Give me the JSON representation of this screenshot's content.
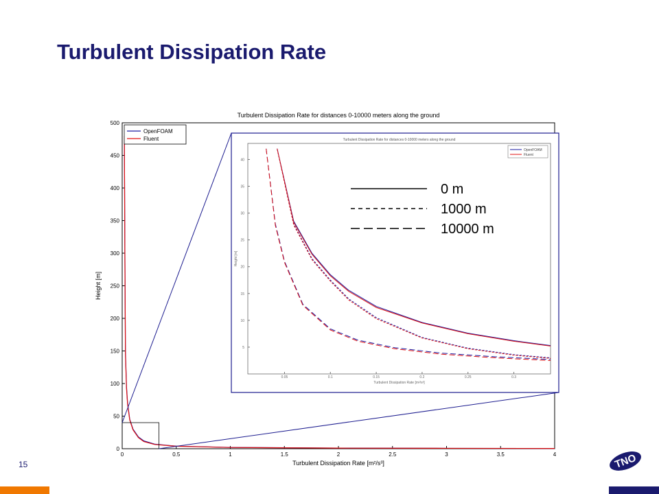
{
  "slide": {
    "title": "Turbulent Dissipation Rate",
    "page_number": "15",
    "logo_text": "TNO"
  },
  "colors": {
    "title": "#1a1a6e",
    "openfoam": "#1a1aa0",
    "fluent": "#e01010",
    "zoom_frame": "#1a1a8e",
    "footer_left": "#f07800",
    "footer_right": "#1a1a6e"
  },
  "chart_data": [
    {
      "type": "line",
      "title": "Turbulent Dissipation Rate for distances 0-10000 meters along the ground",
      "xlabel": "Turbulent Dissipation Rate [m²/s³]",
      "ylabel": "Height [m]",
      "xlim": [
        0,
        4
      ],
      "ylim": [
        0,
        500
      ],
      "xticks": [
        "0",
        "0.5",
        "1",
        "1.5",
        "2",
        "2.5",
        "3",
        "3.5",
        "4"
      ],
      "yticks": [
        "0",
        "50",
        "100",
        "150",
        "200",
        "250",
        "300",
        "350",
        "400",
        "450",
        "500"
      ],
      "legend_position": "top-left",
      "series": [
        {
          "name": "OpenFOAM",
          "color": "#1a1aa0",
          "x": [
            0.02,
            0.025,
            0.03,
            0.04,
            0.05,
            0.07,
            0.1,
            0.15,
            0.2,
            0.3,
            0.5,
            1.0,
            2.0,
            3.0,
            4.0
          ],
          "y": [
            480,
            300,
            150,
            95,
            70,
            45,
            30,
            18,
            12,
            7,
            4,
            2,
            1,
            0.6,
            0.4
          ]
        },
        {
          "name": "Fluent",
          "color": "#e01010",
          "x": [
            0.02,
            0.025,
            0.03,
            0.04,
            0.05,
            0.07,
            0.1,
            0.15,
            0.2,
            0.3,
            0.5,
            1.0,
            2.0,
            3.0,
            4.0
          ],
          "y": [
            480,
            290,
            145,
            92,
            68,
            44,
            29,
            17,
            11,
            6.5,
            3.8,
            1.9,
            0.9,
            0.6,
            0.4
          ]
        }
      ]
    },
    {
      "type": "line",
      "title": "Turbulent Dissipation Rate for distances 0-10000 meters along the ground",
      "xlabel": "Turbulent Dissipation Rate [m²/s³]",
      "ylabel": "Height [m]",
      "xlim": [
        0.01,
        0.34
      ],
      "ylim": [
        0,
        43
      ],
      "xticks": [
        "0.05",
        "0.1",
        "0.15",
        "0.2",
        "0.25",
        "0.3"
      ],
      "yticks": [
        "5",
        "10",
        "15",
        "20",
        "25",
        "30",
        "35",
        "40"
      ],
      "legend_position": "top-right",
      "legend_entries": [
        "OpenFOAM",
        "Fluent"
      ],
      "linestyle_legend": [
        {
          "label": "0 m",
          "style": "solid"
        },
        {
          "label": "1000 m",
          "style": "dashed"
        },
        {
          "label": "10000 m",
          "style": "long-dash"
        }
      ],
      "series": [
        {
          "name": "OpenFOAM 0 m",
          "color": "#1a1aa0",
          "style": "solid",
          "x": [
            0.042,
            0.06,
            0.08,
            0.1,
            0.12,
            0.15,
            0.2,
            0.25,
            0.3,
            0.34
          ],
          "y": [
            42,
            28.5,
            22.5,
            18.5,
            15.6,
            12.6,
            9.6,
            7.6,
            6.2,
            5.3
          ]
        },
        {
          "name": "Fluent 0 m",
          "color": "#e01010",
          "style": "solid",
          "x": [
            0.042,
            0.06,
            0.08,
            0.1,
            0.12,
            0.15,
            0.2,
            0.25,
            0.3,
            0.34
          ],
          "y": [
            42,
            28.3,
            22.3,
            18.3,
            15.4,
            12.4,
            9.5,
            7.5,
            6.1,
            5.2
          ]
        },
        {
          "name": "OpenFOAM 1000 m",
          "color": "#1a1aa0",
          "style": "dashed",
          "x": [
            0.042,
            0.06,
            0.08,
            0.1,
            0.12,
            0.15,
            0.2,
            0.25,
            0.3,
            0.34
          ],
          "y": [
            42,
            28,
            21.5,
            17.5,
            14,
            10.5,
            6.8,
            4.8,
            3.6,
            3.0
          ]
        },
        {
          "name": "Fluent 1000 m",
          "color": "#e01010",
          "style": "dashed",
          "x": [
            0.042,
            0.06,
            0.08,
            0.1,
            0.12,
            0.15,
            0.2,
            0.25,
            0.3,
            0.34
          ],
          "y": [
            42,
            27.8,
            21.3,
            17.3,
            13.8,
            10.3,
            6.7,
            4.7,
            3.5,
            2.9
          ]
        },
        {
          "name": "OpenFOAM 10000 m",
          "color": "#1a1aa0",
          "style": "long-dash",
          "x": [
            0.03,
            0.04,
            0.05,
            0.07,
            0.1,
            0.13,
            0.17,
            0.22,
            0.28,
            0.34
          ],
          "y": [
            42,
            28,
            21,
            13,
            8.4,
            6.3,
            4.9,
            3.9,
            3.2,
            2.7
          ]
        },
        {
          "name": "Fluent 10000 m",
          "color": "#e01010",
          "style": "long-dash",
          "x": [
            0.03,
            0.04,
            0.05,
            0.07,
            0.1,
            0.13,
            0.17,
            0.22,
            0.28,
            0.34
          ],
          "y": [
            42,
            27.7,
            20.8,
            12.8,
            8.2,
            6.1,
            4.7,
            3.7,
            3.0,
            2.5
          ]
        }
      ]
    }
  ]
}
